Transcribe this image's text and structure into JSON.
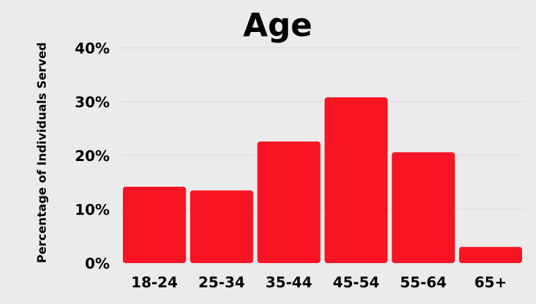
{
  "chart_data": {
    "type": "bar",
    "title": "Age",
    "xlabel": "",
    "ylabel": "Percentage of Individuals Served",
    "categories": [
      "18-24",
      "25-34",
      "35-44",
      "45-54",
      "55-64",
      "65+"
    ],
    "values": [
      14.2,
      13.5,
      22.6,
      30.8,
      20.6,
      3.0
    ],
    "ylim": [
      0,
      40
    ],
    "yticks": [
      0,
      10,
      20,
      30,
      40
    ],
    "ytick_labels": [
      "0%",
      "10%",
      "20%",
      "30%",
      "40%"
    ],
    "grid": true,
    "legend": "none",
    "bar_color": "#f71423"
  }
}
